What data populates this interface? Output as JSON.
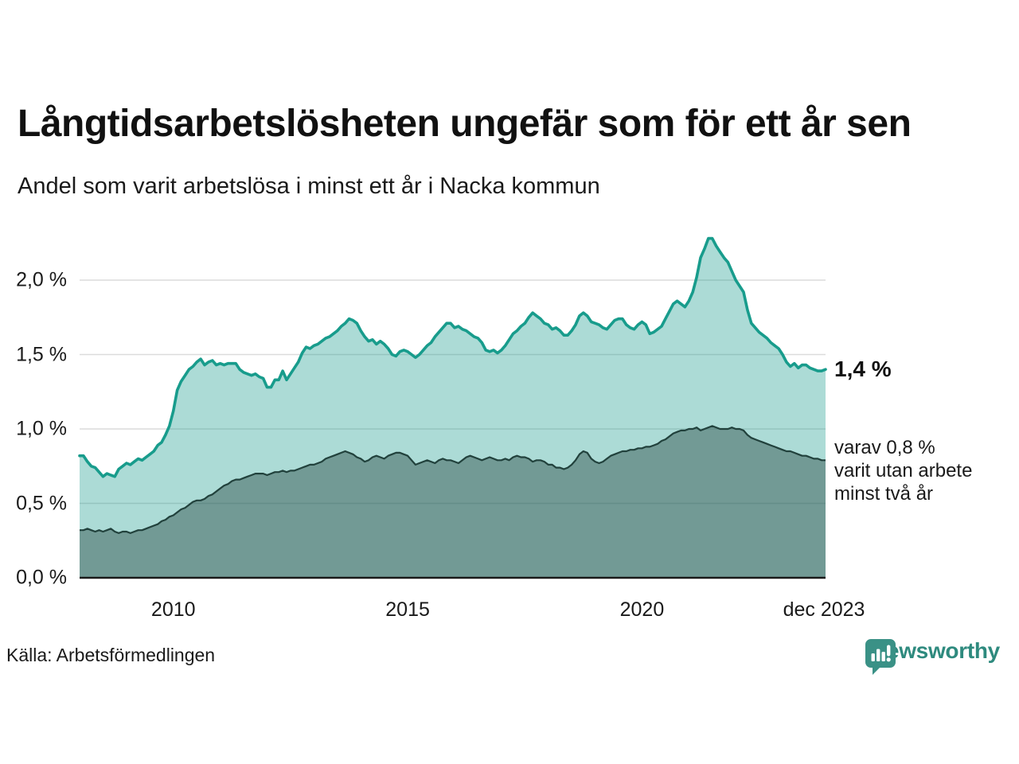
{
  "chart_data": {
    "type": "area",
    "title": "Långtidsarbetslösheten ungefär som för ett år sen",
    "subtitle": "Andel som varit arbetslösa i minst ett år i Nacka kommun",
    "source": "Källa: Arbetsförmedlingen",
    "brand": "Newsworthy",
    "colors": {
      "line_total": "#189c8c",
      "fill_total_opacity": 0.36,
      "line_two_years": "#21413c",
      "fill_two_years_opacity": 0.42,
      "gridline": "#dcdcdc",
      "axis_line": "#1a1a1a",
      "brand_teal": "#3a9186"
    },
    "x_start": "2008-01",
    "x_end": "2023-12",
    "frequency": "monthly",
    "ylim": [
      0,
      2.36
    ],
    "grid": true,
    "y_ticks": [
      {
        "label": "2,0 %",
        "value": 2.0
      },
      {
        "label": "1,5 %",
        "value": 1.5
      },
      {
        "label": "1,0 %",
        "value": 1.0
      },
      {
        "label": "0,5 %",
        "value": 0.5
      },
      {
        "label": "0,0 %",
        "value": 0.0
      }
    ],
    "x_ticks": [
      {
        "label": "2010",
        "month_index": 24
      },
      {
        "label": "2015",
        "month_index": 84
      },
      {
        "label": "2020",
        "month_index": 144
      },
      {
        "label": "dec 2023",
        "month_index": 191
      }
    ],
    "series": [
      {
        "name": "Andel arbetslösa minst ett år",
        "values": [
          0.82,
          0.82,
          0.78,
          0.75,
          0.74,
          0.71,
          0.68,
          0.7,
          0.69,
          0.68,
          0.73,
          0.75,
          0.77,
          0.76,
          0.78,
          0.8,
          0.79,
          0.81,
          0.83,
          0.85,
          0.89,
          0.91,
          0.96,
          1.02,
          1.12,
          1.26,
          1.32,
          1.36,
          1.4,
          1.42,
          1.45,
          1.47,
          1.43,
          1.45,
          1.46,
          1.43,
          1.44,
          1.43,
          1.44,
          1.44,
          1.44,
          1.4,
          1.38,
          1.37,
          1.36,
          1.37,
          1.35,
          1.34,
          1.28,
          1.28,
          1.33,
          1.33,
          1.39,
          1.33,
          1.37,
          1.41,
          1.45,
          1.51,
          1.55,
          1.54,
          1.56,
          1.57,
          1.59,
          1.61,
          1.62,
          1.64,
          1.66,
          1.69,
          1.71,
          1.74,
          1.73,
          1.71,
          1.66,
          1.62,
          1.59,
          1.6,
          1.57,
          1.59,
          1.57,
          1.54,
          1.5,
          1.49,
          1.52,
          1.53,
          1.52,
          1.5,
          1.48,
          1.5,
          1.53,
          1.56,
          1.58,
          1.62,
          1.65,
          1.68,
          1.71,
          1.71,
          1.68,
          1.69,
          1.67,
          1.66,
          1.64,
          1.62,
          1.61,
          1.58,
          1.53,
          1.52,
          1.53,
          1.51,
          1.53,
          1.56,
          1.6,
          1.64,
          1.66,
          1.69,
          1.71,
          1.75,
          1.78,
          1.76,
          1.74,
          1.71,
          1.7,
          1.67,
          1.68,
          1.66,
          1.63,
          1.63,
          1.66,
          1.7,
          1.76,
          1.78,
          1.76,
          1.72,
          1.71,
          1.7,
          1.68,
          1.67,
          1.7,
          1.73,
          1.74,
          1.74,
          1.7,
          1.68,
          1.67,
          1.7,
          1.72,
          1.7,
          1.64,
          1.65,
          1.67,
          1.69,
          1.74,
          1.79,
          1.84,
          1.86,
          1.84,
          1.82,
          1.86,
          1.92,
          2.02,
          2.15,
          2.21,
          2.28,
          2.28,
          2.23,
          2.19,
          2.15,
          2.12,
          2.06,
          2.0,
          1.96,
          1.92,
          1.8,
          1.71,
          1.68,
          1.65,
          1.63,
          1.61,
          1.58,
          1.56,
          1.54,
          1.5,
          1.45,
          1.42,
          1.44,
          1.41,
          1.43,
          1.43,
          1.41,
          1.4,
          1.39,
          1.39,
          1.4
        ]
      },
      {
        "name": "Varav utan arbete minst två år",
        "values": [
          0.32,
          0.32,
          0.33,
          0.32,
          0.31,
          0.32,
          0.31,
          0.32,
          0.33,
          0.31,
          0.3,
          0.31,
          0.31,
          0.3,
          0.31,
          0.32,
          0.32,
          0.33,
          0.34,
          0.35,
          0.36,
          0.38,
          0.39,
          0.41,
          0.42,
          0.44,
          0.46,
          0.47,
          0.49,
          0.51,
          0.52,
          0.52,
          0.53,
          0.55,
          0.56,
          0.58,
          0.6,
          0.62,
          0.63,
          0.65,
          0.66,
          0.66,
          0.67,
          0.68,
          0.69,
          0.7,
          0.7,
          0.7,
          0.69,
          0.7,
          0.71,
          0.71,
          0.72,
          0.71,
          0.72,
          0.72,
          0.73,
          0.74,
          0.75,
          0.76,
          0.76,
          0.77,
          0.78,
          0.8,
          0.81,
          0.82,
          0.83,
          0.84,
          0.85,
          0.84,
          0.83,
          0.81,
          0.8,
          0.78,
          0.79,
          0.81,
          0.82,
          0.81,
          0.8,
          0.82,
          0.83,
          0.84,
          0.84,
          0.83,
          0.82,
          0.79,
          0.76,
          0.77,
          0.78,
          0.79,
          0.78,
          0.77,
          0.79,
          0.8,
          0.79,
          0.79,
          0.78,
          0.77,
          0.79,
          0.81,
          0.82,
          0.81,
          0.8,
          0.79,
          0.8,
          0.81,
          0.8,
          0.79,
          0.79,
          0.8,
          0.79,
          0.81,
          0.82,
          0.81,
          0.81,
          0.8,
          0.78,
          0.79,
          0.79,
          0.78,
          0.76,
          0.76,
          0.74,
          0.74,
          0.73,
          0.74,
          0.76,
          0.79,
          0.83,
          0.85,
          0.84,
          0.8,
          0.78,
          0.77,
          0.78,
          0.8,
          0.82,
          0.83,
          0.84,
          0.85,
          0.85,
          0.86,
          0.86,
          0.87,
          0.87,
          0.88,
          0.88,
          0.89,
          0.9,
          0.92,
          0.93,
          0.95,
          0.97,
          0.98,
          0.99,
          0.99,
          1.0,
          1.0,
          1.01,
          0.99,
          1.0,
          1.01,
          1.02,
          1.01,
          1.0,
          1.0,
          1.0,
          1.01,
          1.0,
          1.0,
          0.99,
          0.96,
          0.94,
          0.93,
          0.92,
          0.91,
          0.9,
          0.89,
          0.88,
          0.87,
          0.86,
          0.85,
          0.85,
          0.84,
          0.83,
          0.82,
          0.82,
          0.81,
          0.8,
          0.8,
          0.79,
          0.79
        ]
      }
    ],
    "annotations": [
      {
        "text": "1,4 %",
        "value": 1.4,
        "bold": true
      },
      {
        "lines": [
          "varav 0,8 %",
          "varit utan arbete",
          "minst två år"
        ],
        "value": 0.79
      }
    ]
  }
}
